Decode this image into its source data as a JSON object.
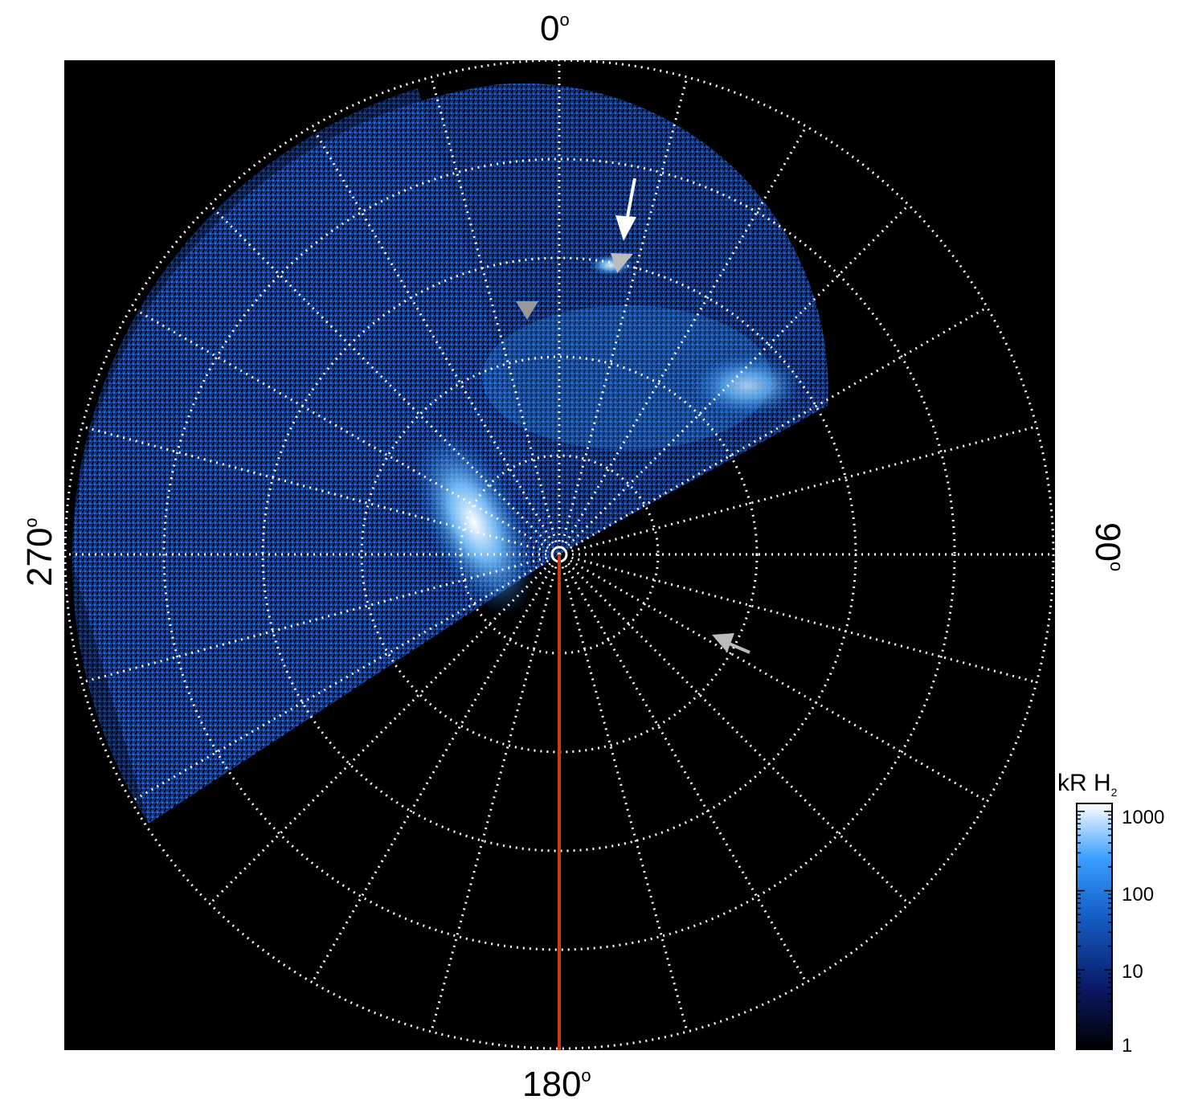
{
  "axis_labels": {
    "top": "0",
    "right": "90",
    "bottom": "180",
    "left": "270",
    "degree_symbol": "o"
  },
  "colorbar": {
    "title_main": "kR H",
    "title_sub": "2",
    "ticks": [
      "1000",
      "100",
      "10",
      "1"
    ],
    "scale": "log",
    "colors": [
      "#000000",
      "#0a1a66",
      "#1560c8",
      "#3aa0ff",
      "#ffffff"
    ]
  },
  "image": {
    "background": "#000000",
    "grid_color": "#ffffff",
    "meridian_line_color": "#c83c14",
    "rings": 5,
    "meridians": 24
  }
}
